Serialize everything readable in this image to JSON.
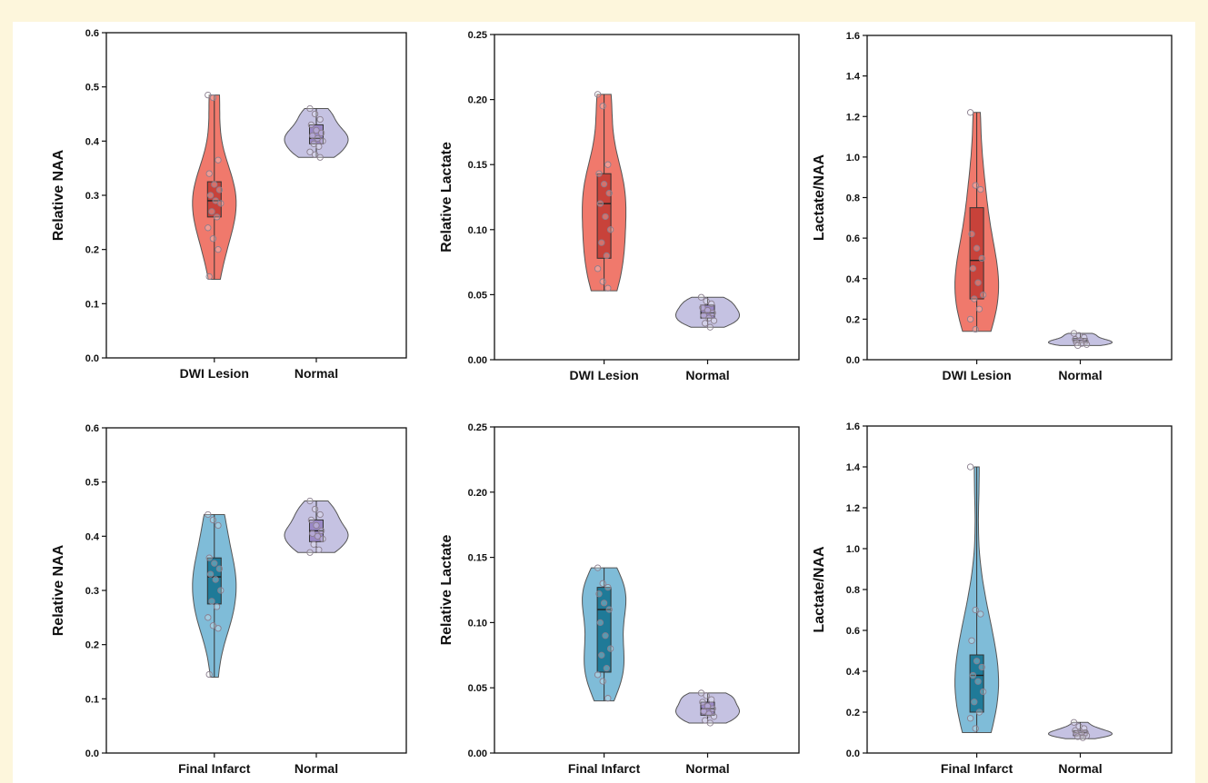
{
  "colors": {
    "dwi_violin": "#f0796c",
    "dwi_box": "#c8423a",
    "infarct_violin": "#7fbcd8",
    "infarct_box": "#1f7a98",
    "normal_violin": "#c5c2e2",
    "normal_box": "#9a88c6"
  },
  "chart_data": [
    {
      "type": "violin",
      "ylabel": "Relative NAA",
      "ylim": [
        0,
        0.6
      ],
      "yticks": [
        "0.0",
        "0.1",
        "0.2",
        "0.3",
        "0.4",
        "0.5",
        "0.6"
      ],
      "categories": [
        "DWI Lesion",
        "Normal"
      ],
      "groups": [
        {
          "name": "DWI Lesion",
          "min": 0.145,
          "q1": 0.26,
          "median": 0.29,
          "q3": 0.325,
          "max": 0.485,
          "points": [
            0.485,
            0.48,
            0.365,
            0.34,
            0.32,
            0.31,
            0.3,
            0.29,
            0.285,
            0.27,
            0.26,
            0.24,
            0.22,
            0.2,
            0.15
          ]
        },
        {
          "name": "Normal",
          "min": 0.37,
          "q1": 0.395,
          "median": 0.405,
          "q3": 0.43,
          "max": 0.46,
          "points": [
            0.46,
            0.45,
            0.44,
            0.43,
            0.42,
            0.415,
            0.41,
            0.405,
            0.4,
            0.395,
            0.39,
            0.38,
            0.375,
            0.37
          ]
        }
      ]
    },
    {
      "type": "violin",
      "ylabel": "Relative Lactate",
      "ylim": [
        0,
        0.25
      ],
      "yticks": [
        "0.00",
        "0.05",
        "0.10",
        "0.15",
        "0.20",
        "0.25"
      ],
      "categories": [
        "DWI Lesion",
        "Normal"
      ],
      "groups": [
        {
          "name": "DWI Lesion",
          "min": 0.053,
          "q1": 0.078,
          "median": 0.12,
          "q3": 0.143,
          "max": 0.204,
          "points": [
            0.204,
            0.195,
            0.15,
            0.143,
            0.135,
            0.128,
            0.12,
            0.11,
            0.1,
            0.09,
            0.08,
            0.07,
            0.06,
            0.055
          ]
        },
        {
          "name": "Normal",
          "min": 0.025,
          "q1": 0.032,
          "median": 0.036,
          "q3": 0.042,
          "max": 0.048,
          "points": [
            0.048,
            0.045,
            0.043,
            0.04,
            0.038,
            0.036,
            0.034,
            0.032,
            0.03,
            0.028,
            0.025
          ]
        }
      ]
    },
    {
      "type": "violin",
      "ylabel": "Lactate/NAA",
      "ylim": [
        0,
        1.6
      ],
      "yticks": [
        "0.0",
        "0.2",
        "0.4",
        "0.6",
        "0.8",
        "1.0",
        "1.2",
        "1.4",
        "1.6"
      ],
      "categories": [
        "DWI Lesion",
        "Normal"
      ],
      "groups": [
        {
          "name": "DWI Lesion",
          "min": 0.14,
          "q1": 0.3,
          "median": 0.49,
          "q3": 0.75,
          "max": 1.22,
          "points": [
            1.22,
            0.86,
            0.84,
            0.62,
            0.55,
            0.5,
            0.45,
            0.38,
            0.32,
            0.3,
            0.25,
            0.2,
            0.15
          ]
        },
        {
          "name": "Normal",
          "min": 0.07,
          "q1": 0.085,
          "median": 0.095,
          "q3": 0.105,
          "max": 0.13,
          "points": [
            0.13,
            0.12,
            0.11,
            0.1,
            0.095,
            0.09,
            0.085,
            0.08,
            0.075,
            0.07
          ]
        }
      ]
    },
    {
      "type": "violin",
      "ylabel": "Relative NAA",
      "ylim": [
        0,
        0.6
      ],
      "yticks": [
        "0.0",
        "0.1",
        "0.2",
        "0.3",
        "0.4",
        "0.5",
        "0.6"
      ],
      "categories": [
        "Final Infarct",
        "Normal"
      ],
      "groups": [
        {
          "name": "Final Infarct",
          "min": 0.14,
          "q1": 0.275,
          "median": 0.325,
          "q3": 0.36,
          "max": 0.44,
          "points": [
            0.44,
            0.43,
            0.42,
            0.36,
            0.35,
            0.34,
            0.33,
            0.32,
            0.3,
            0.28,
            0.27,
            0.25,
            0.235,
            0.23,
            0.145
          ]
        },
        {
          "name": "Normal",
          "min": 0.37,
          "q1": 0.39,
          "median": 0.41,
          "q3": 0.43,
          "max": 0.465,
          "points": [
            0.465,
            0.45,
            0.44,
            0.43,
            0.42,
            0.41,
            0.405,
            0.4,
            0.395,
            0.385,
            0.375,
            0.37
          ]
        }
      ]
    },
    {
      "type": "violin",
      "ylabel": "Relative Lactate",
      "ylim": [
        0,
        0.25
      ],
      "yticks": [
        "0.00",
        "0.05",
        "0.10",
        "0.15",
        "0.20",
        "0.25"
      ],
      "categories": [
        "Final Infarct",
        "Normal"
      ],
      "groups": [
        {
          "name": "Final Infarct",
          "min": 0.04,
          "q1": 0.062,
          "median": 0.11,
          "q3": 0.127,
          "max": 0.142,
          "points": [
            0.142,
            0.13,
            0.127,
            0.122,
            0.115,
            0.11,
            0.1,
            0.09,
            0.08,
            0.075,
            0.065,
            0.06,
            0.055,
            0.042
          ]
        },
        {
          "name": "Normal",
          "min": 0.023,
          "q1": 0.029,
          "median": 0.034,
          "q3": 0.039,
          "max": 0.046,
          "points": [
            0.046,
            0.044,
            0.041,
            0.039,
            0.036,
            0.034,
            0.032,
            0.03,
            0.028,
            0.025,
            0.023
          ]
        }
      ]
    },
    {
      "type": "violin",
      "ylabel": "Lactate/NAA",
      "ylim": [
        0,
        1.6
      ],
      "yticks": [
        "0.0",
        "0.2",
        "0.4",
        "0.6",
        "0.8",
        "1.0",
        "1.2",
        "1.4",
        "1.6"
      ],
      "categories": [
        "Final Infarct",
        "Normal"
      ],
      "groups": [
        {
          "name": "Final Infarct",
          "min": 0.1,
          "q1": 0.2,
          "median": 0.38,
          "q3": 0.48,
          "max": 1.4,
          "points": [
            1.4,
            0.7,
            0.68,
            0.55,
            0.45,
            0.42,
            0.38,
            0.35,
            0.3,
            0.25,
            0.2,
            0.17,
            0.12
          ]
        },
        {
          "name": "Normal",
          "min": 0.07,
          "q1": 0.085,
          "median": 0.1,
          "q3": 0.11,
          "max": 0.15,
          "points": [
            0.15,
            0.13,
            0.12,
            0.11,
            0.105,
            0.1,
            0.095,
            0.09,
            0.085,
            0.08,
            0.075
          ]
        }
      ]
    }
  ]
}
